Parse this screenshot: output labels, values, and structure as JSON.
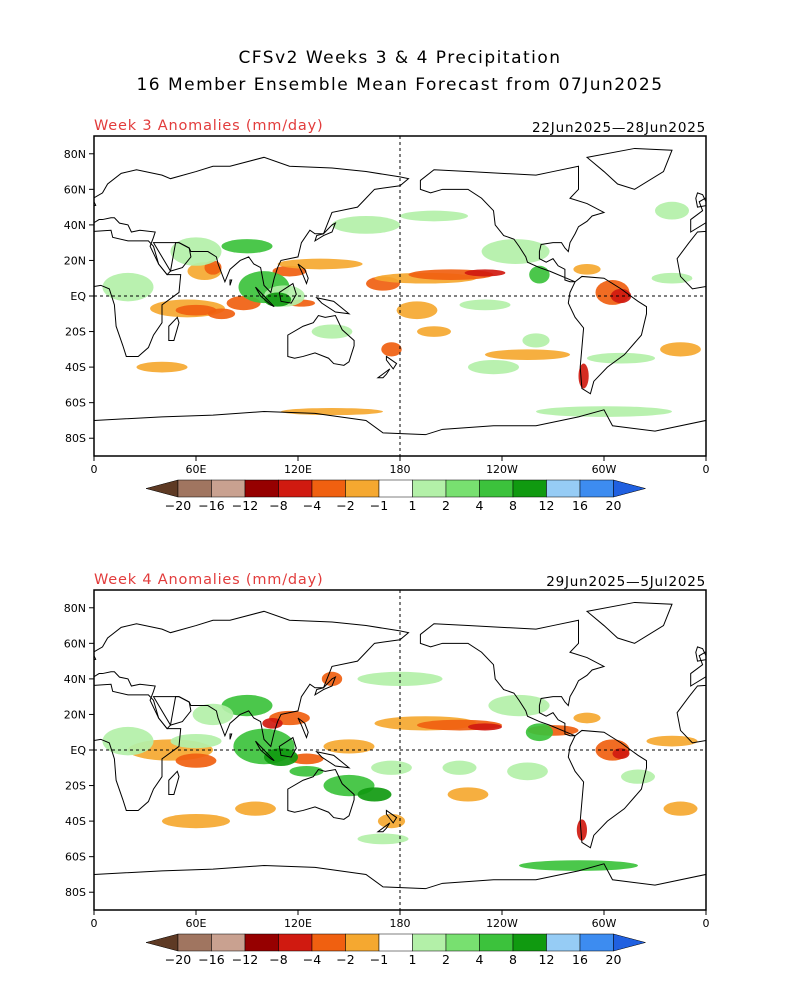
{
  "header": {
    "title_line1": "CFSv2 Weeks 3 & 4 Precipitation",
    "title_line2": "16 Member Ensemble Mean Forecast from 07Jun2025"
  },
  "panels": [
    {
      "label": "Week 3 Anomalies (mm/day)",
      "dates": "22Jun2025—28Jun2025"
    },
    {
      "label": "Week 4 Anomalies (mm/day)",
      "dates": "29Jun2025—5Jul2025"
    }
  ],
  "axes": {
    "lat_labels": [
      "80N",
      "60N",
      "40N",
      "20N",
      "EQ",
      "20S",
      "40S",
      "60S",
      "80S"
    ],
    "lon_labels": [
      "0",
      "60E",
      "120E",
      "180",
      "120W",
      "60W",
      "0"
    ]
  },
  "colorbar": {
    "labels": [
      "−20",
      "−16",
      "−12",
      "−8",
      "−4",
      "−2",
      "−1",
      "1",
      "2",
      "4",
      "8",
      "12",
      "16",
      "20"
    ],
    "colors": [
      "#5e3a24",
      "#a07560",
      "#c9a190",
      "#960000",
      "#d01a10",
      "#f06010",
      "#f5a830",
      "#ffffff",
      "#b3f0a8",
      "#78e070",
      "#3cc23c",
      "#109a10",
      "#96ccf5",
      "#3d8cf0",
      "#2060e0"
    ]
  },
  "legend": {
    "colors": {
      "dry_strong": "#d01a10",
      "dry": "#f06010",
      "dry_light": "#f5a830",
      "wet_light": "#b3f0a8",
      "wet": "#3cc23c",
      "wet_strong": "#109a10"
    }
  }
}
